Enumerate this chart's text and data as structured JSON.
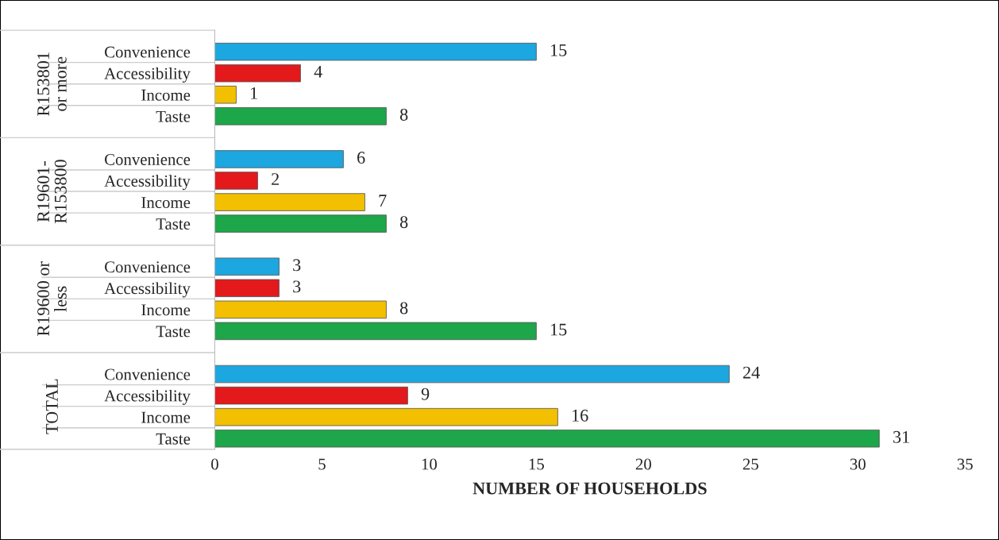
{
  "chart_data": {
    "type": "bar",
    "orientation": "horizontal",
    "xlabel": "NUMBER OF HOUSEHOLDS",
    "categories": [
      "Convenience",
      "Accessibility",
      "Income",
      "Taste",
      null,
      "Convenience",
      "Accessibility",
      "Income",
      "Taste",
      null,
      "Convenience",
      "Accessibility",
      "Income",
      "Taste",
      null,
      "Convenience",
      "Accessibility",
      "Income",
      "Taste"
    ],
    "values": [
      15,
      4,
      1,
      8,
      null,
      6,
      2,
      7,
      8,
      null,
      3,
      3,
      8,
      15,
      null,
      24,
      9,
      16,
      31
    ],
    "colors": [
      "#1ca7e0",
      "#e3191c",
      "#f2c000",
      "#1ea64a",
      null,
      "#1ca7e0",
      "#e3191c",
      "#f2c000",
      "#1ea64a",
      null,
      "#1ca7e0",
      "#e3191c",
      "#f2c000",
      "#1ea64a",
      null,
      "#1ca7e0",
      "#e3191c",
      "#f2c000",
      "#1ea64a"
    ],
    "annotations": [
      "R153801 or more",
      "R19601-R153800",
      "R19600 or less",
      "TOTAL"
    ],
    "xlim": [
      0,
      35
    ],
    "xticks": [
      0,
      5,
      10,
      15,
      20,
      25,
      30,
      35
    ],
    "data_labels": true,
    "grid": false,
    "legend": false
  }
}
